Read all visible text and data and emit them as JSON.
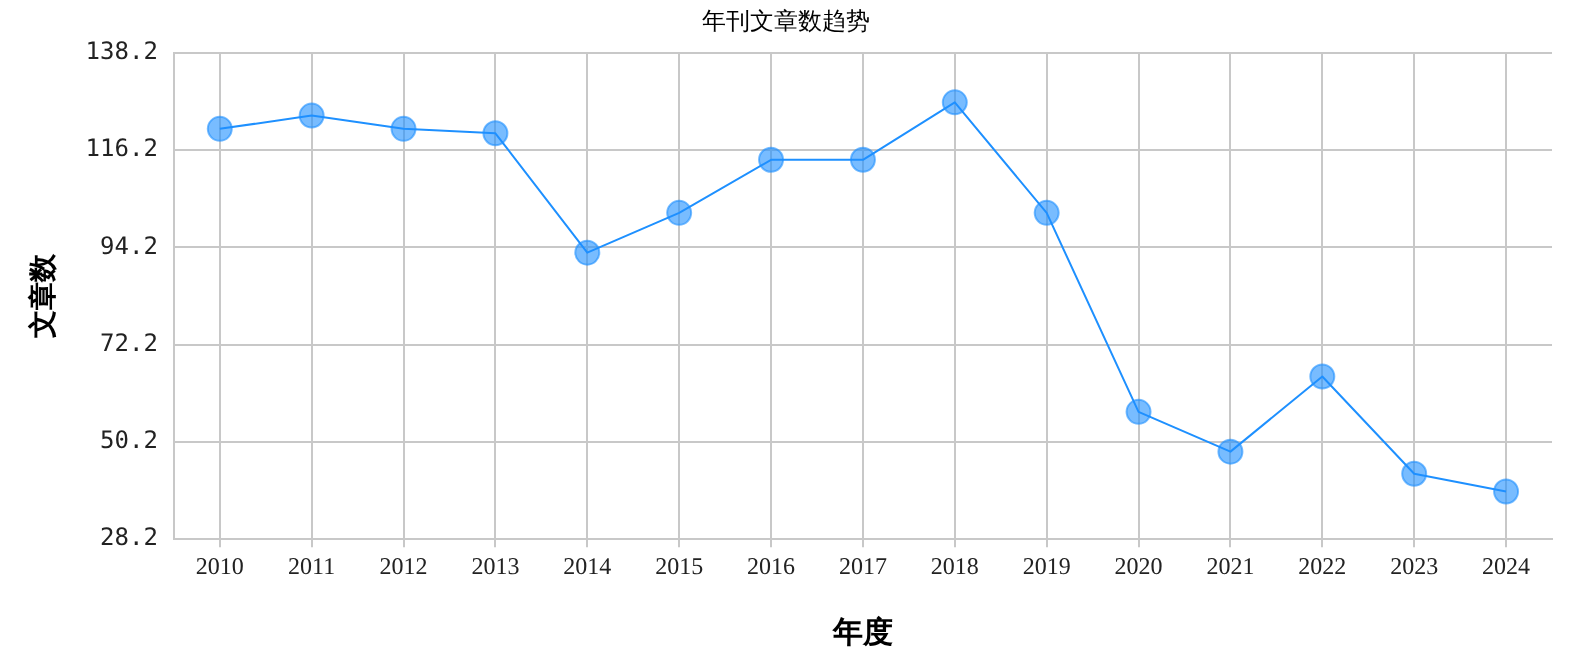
{
  "chart_data": {
    "type": "line",
    "title": "年刊文章数趋势",
    "xlabel": "年度",
    "ylabel": "文章数",
    "categories": [
      "2010",
      "2011",
      "2012",
      "2013",
      "2014",
      "2015",
      "2016",
      "2017",
      "2018",
      "2019",
      "2020",
      "2021",
      "2022",
      "2023",
      "2024"
    ],
    "series": [
      {
        "color": "#1e90ff",
        "values": [
          121,
          124,
          121,
          120,
          93,
          102,
          114,
          114,
          127,
          102,
          57,
          48,
          65,
          43,
          39
        ]
      }
    ],
    "ylim": [
      28.2,
      138.2
    ],
    "yticks": [
      28.2,
      50.2,
      72.2,
      94.2,
      116.2,
      138.2
    ],
    "grid": true,
    "legend": false,
    "marker": "circle",
    "line_style": "solid"
  }
}
